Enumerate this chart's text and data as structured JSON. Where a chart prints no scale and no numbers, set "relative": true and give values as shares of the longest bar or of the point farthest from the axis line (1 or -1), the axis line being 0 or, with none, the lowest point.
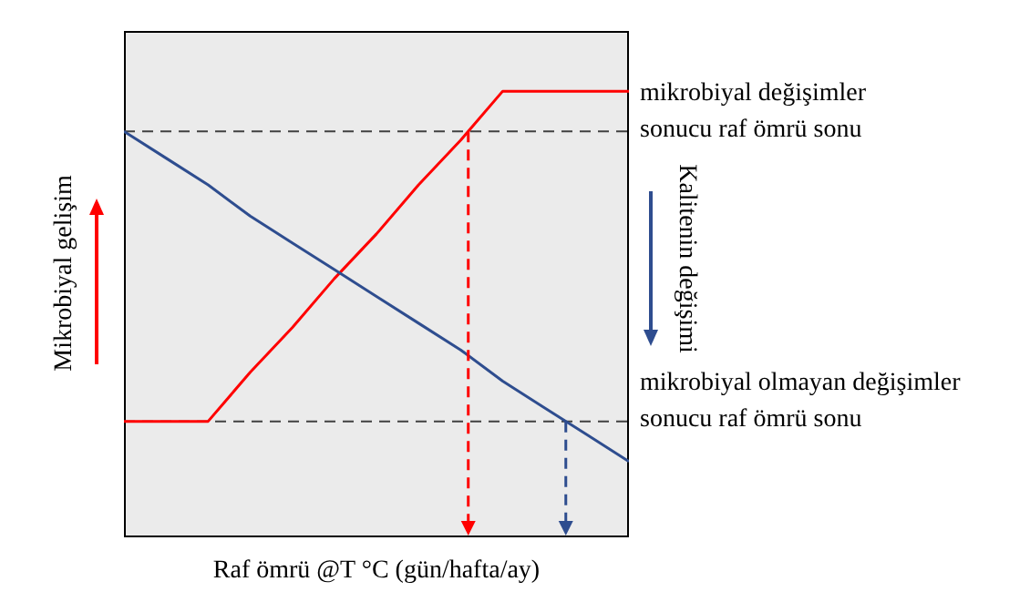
{
  "chart_data": {
    "type": "line",
    "relative": true,
    "xlabel": "Raf ömrü @T °C (gün/hafta/ay)",
    "ylabel": "Mikrobiyal gelişim",
    "y2label": "Kalitenin değişimi",
    "marker": "none",
    "line_style": "solid",
    "categories": [
      null,
      null,
      null,
      null,
      null,
      null,
      null,
      null,
      null,
      null,
      null,
      null,
      null
    ],
    "series": [
      {
        "color": "#ff0000",
        "values": [
          0.26,
          0.26,
          0.26,
          0.37,
          0.47,
          0.58,
          0.68,
          0.79,
          0.89,
          1,
          1,
          1,
          1
        ]
      },
      {
        "color": "#2e4d8f",
        "values": [
          0.91,
          0.85,
          0.79,
          0.72,
          0.66,
          0.6,
          0.54,
          0.48,
          0.42,
          0.35,
          0.29,
          0.23,
          0.17
        ]
      }
    ],
    "ref_lines": [
      {
        "axis": "y",
        "value": 0.91,
        "label": "mikrobiyal değişimler\nsonucu raf ömrü sonu",
        "color": "#404040",
        "line_style": "dashed"
      },
      {
        "axis": "y",
        "value": 0.26,
        "label": "mikrobiyal olmayan değişimler\nsonucu raf ömrü sonu",
        "color": "#404040",
        "line_style": "dashed"
      }
    ]
  }
}
